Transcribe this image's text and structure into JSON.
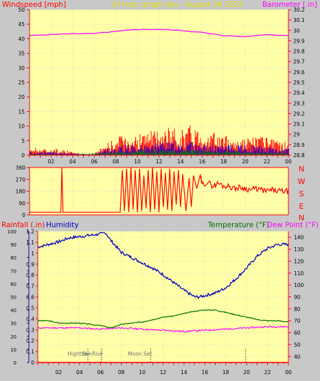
{
  "header": {
    "left_label": "Windspeed [mph]",
    "title": "24 hour graph day - August 06 2023",
    "right_label": "Barometer [.in]"
  },
  "labels": {
    "rainfall": "Rainfall (.in)",
    "humidity": "Humidity",
    "temperature": "Temperature (°F)",
    "dewpoint": "Dew Point (°F)"
  },
  "colors": {
    "plot_bg": "#ffffa8",
    "frame": "#c8c8c8",
    "axis": "#ff0000",
    "grid": "#d9d9d9",
    "wind": "#ff0000",
    "gust_blue": "#0000ff",
    "gust_green": "#008000",
    "barometer": "#ff00ff",
    "title": "#e6e600",
    "humidity": "#0000c0",
    "temperature": "#007000",
    "dewpoint": "#ff00ff"
  },
  "chart_data": [
    {
      "type": "bar",
      "name": "wind",
      "x_ticks": [
        "02",
        "04",
        "06",
        "08",
        "10",
        "12",
        "14",
        "16",
        "18",
        "20",
        "22",
        "00"
      ],
      "left_axis": {
        "label": "Windspeed [mph]",
        "ticks": [
          0,
          5,
          10,
          15,
          20,
          25,
          30,
          35,
          40,
          45,
          50
        ],
        "range": [
          0,
          50
        ]
      },
      "right_axis": {
        "label": "Barometer [.in]",
        "ticks": [
          28.8,
          28.9,
          29.0,
          29.1,
          29.2,
          29.3,
          29.4,
          29.5,
          29.6,
          29.7,
          29.8,
          29.9,
          30.0,
          30.1,
          30.2
        ],
        "tick_labels": [
          "28.8",
          "28.9",
          "29",
          "29.1",
          "29.2",
          "29.3",
          "29.4",
          "29.5",
          "29.6",
          "29.7",
          "29.8",
          "29.9",
          "30",
          "30.1",
          "30.2"
        ],
        "range": [
          28.8,
          30.2
        ]
      },
      "barometer": {
        "x": [
          0,
          2,
          4,
          6,
          8,
          10,
          12,
          14,
          16,
          18,
          20,
          22,
          24
        ],
        "y": [
          29.95,
          29.96,
          29.97,
          29.97,
          29.99,
          30.01,
          30.01,
          30.0,
          29.98,
          29.95,
          29.94,
          29.96,
          29.95
        ]
      },
      "wind_max": {
        "x": [
          0,
          1,
          2,
          3,
          4,
          5,
          6,
          7,
          8,
          9,
          10,
          11,
          12,
          13,
          14,
          15,
          16,
          17,
          18,
          19,
          20,
          21,
          22,
          23,
          24
        ],
        "y": [
          3,
          2.5,
          2,
          2.5,
          1,
          0.5,
          0.5,
          4,
          6,
          8,
          7,
          9,
          8,
          10,
          9,
          11,
          9,
          8,
          7,
          6,
          6,
          7,
          6,
          5,
          5
        ]
      },
      "wind_avg": {
        "x": [
          0,
          2,
          4,
          6,
          7,
          9,
          11,
          13,
          15,
          17,
          19,
          21,
          23,
          24
        ],
        "y": [
          1,
          1,
          0.5,
          0.3,
          2,
          3,
          3,
          4,
          4,
          3,
          3,
          3,
          2,
          2
        ]
      },
      "wind_low": {
        "x": [
          0,
          4,
          7,
          9,
          11,
          13,
          15,
          17,
          19,
          21,
          24
        ],
        "y": [
          0.5,
          0.3,
          1,
          1.5,
          2,
          2,
          2,
          1.5,
          1.5,
          1,
          1
        ]
      }
    },
    {
      "type": "line",
      "name": "wind-direction",
      "x_ticks": [
        "02",
        "04",
        "06",
        "08",
        "10",
        "12",
        "14",
        "16",
        "18",
        "20",
        "22",
        "00"
      ],
      "left_axis": {
        "ticks": [
          0,
          90,
          180,
          270,
          360
        ],
        "range": [
          0,
          360
        ]
      },
      "right_labels": [
        "N",
        "W",
        "S",
        "E",
        "N"
      ],
      "direction": {
        "x": [
          0,
          1,
          2,
          2.9,
          3,
          3.1,
          4,
          5,
          6,
          6.6,
          6.8,
          7,
          7.2,
          7.3,
          7.5,
          7.6,
          7.8,
          8,
          8.2,
          8.4,
          8.6,
          8.8,
          9,
          9.2,
          9.4,
          9.6,
          9.8,
          10,
          10.2,
          10.4,
          10.6,
          10.8,
          11,
          11.2,
          11.4,
          11.6,
          11.8,
          12,
          12.2,
          12.4,
          12.6,
          12.8,
          13,
          13.2,
          13.4,
          13.6,
          13.8,
          14,
          14.2,
          14.5,
          14.8,
          15,
          15.2,
          15.5,
          15.8,
          16,
          16.5,
          17,
          17.5,
          18,
          18.5,
          19,
          19.5,
          20,
          20.5,
          21,
          21.5,
          22,
          22.5,
          23,
          23.5,
          24
        ],
        "y": [
          20,
          20,
          20,
          20,
          360,
          20,
          20,
          20,
          20,
          20,
          20,
          20,
          20,
          20,
          20,
          20,
          20,
          20,
          20,
          20,
          340,
          30,
          350,
          20,
          360,
          40,
          340,
          20,
          350,
          30,
          300,
          50,
          340,
          20,
          360,
          40,
          330,
          20,
          350,
          60,
          320,
          40,
          350,
          30,
          330,
          80,
          340,
          60,
          310,
          30,
          280,
          60,
          300,
          200,
          300,
          230,
          250,
          220,
          240,
          220,
          220,
          200,
          210,
          200,
          190,
          200,
          190,
          180,
          190,
          180,
          180,
          180
        ]
      }
    },
    {
      "type": "line",
      "name": "temperature-humidity",
      "x_ticks": [
        "02",
        "04",
        "06",
        "08",
        "10",
        "12",
        "14",
        "16",
        "18",
        "20",
        "22",
        "00"
      ],
      "rain_axis": {
        "label": "Rainfall (.in)",
        "ticks": [
          0,
          0.1,
          0.2,
          0.3,
          0.4,
          0.5,
          0.6,
          0.7,
          0.8,
          0.9,
          1,
          1.1,
          1.2
        ],
        "tick_labels": [
          "0",
          "0.1",
          "0.2",
          "0.3",
          "0.4",
          "0.5",
          "0.6",
          "0.7",
          "0.8",
          "0.9",
          "1",
          "1.1",
          "1.2"
        ],
        "range": [
          0,
          1.2
        ]
      },
      "humidity_axis": {
        "label": "Humidity",
        "ticks": [
          0,
          10,
          20,
          30,
          40,
          50,
          60,
          70,
          80,
          90,
          100
        ],
        "range": [
          0,
          100
        ]
      },
      "temp_axis": {
        "label": "Temperature (°F)",
        "ticks": [
          40,
          50,
          60,
          70,
          80,
          90,
          100,
          110,
          120,
          130,
          140
        ],
        "range": [
          35,
          145
        ]
      },
      "humidity": {
        "x": [
          0,
          1,
          2,
          3,
          4,
          5,
          6,
          6.5,
          7,
          8,
          9,
          10,
          11,
          12,
          13,
          14,
          15,
          15.5,
          16,
          17,
          18,
          19,
          20,
          21,
          22,
          23,
          24
        ],
        "y": [
          88,
          90,
          92,
          95,
          96,
          97,
          98,
          99,
          93,
          84,
          80,
          76,
          72,
          67,
          61,
          55,
          50,
          50,
          51,
          53,
          57,
          64,
          72,
          81,
          87,
          90,
          90
        ]
      },
      "temperature": {
        "x": [
          0,
          1,
          2,
          3,
          4,
          5,
          6,
          7,
          8,
          9,
          10,
          11,
          12,
          13,
          14,
          15,
          16,
          17,
          18,
          19,
          20,
          21,
          22,
          23,
          24
        ],
        "y": [
          70,
          70,
          68,
          68,
          68,
          67,
          66,
          64,
          67,
          68,
          69,
          71,
          73,
          74,
          76,
          78,
          79,
          79,
          77,
          75,
          73,
          71,
          70,
          70,
          69
        ]
      },
      "dewpoint": {
        "x": [
          0,
          2,
          4,
          6,
          8,
          10,
          12,
          14,
          16,
          18,
          20,
          22,
          24
        ],
        "y": [
          64,
          64,
          64,
          63,
          64,
          63,
          62,
          61,
          62,
          63,
          64,
          65,
          65
        ]
      },
      "events": [
        {
          "label": "Hightide",
          "x": 4.8
        },
        {
          "label": "SunRise",
          "x": 6.1
        },
        {
          "label": "Moon Set",
          "x": 10.8
        },
        {
          "label": "",
          "x": 19.9
        }
      ]
    }
  ]
}
